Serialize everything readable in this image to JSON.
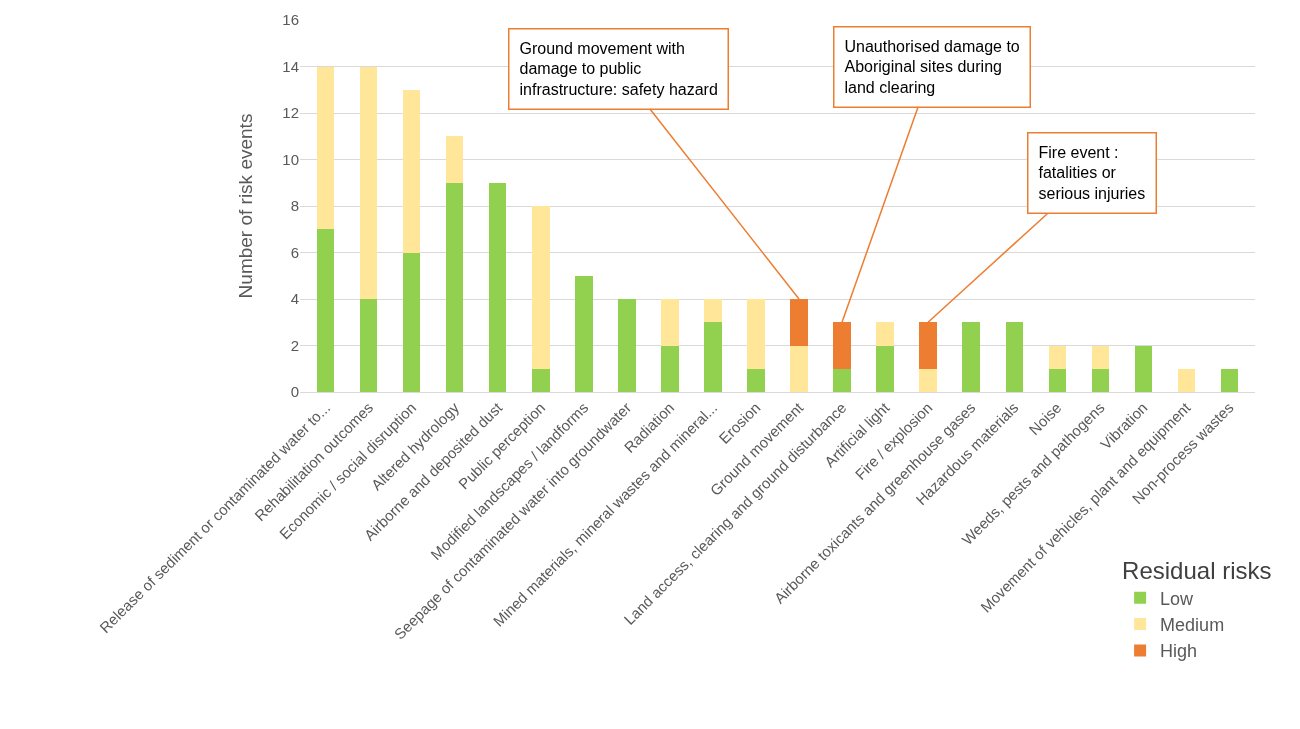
{
  "chart_data": {
    "type": "bar",
    "stacked": true,
    "ylabel": "Number of risk events",
    "legend_title": "Residual risks",
    "legend": "bottom right",
    "grid": "y",
    "categories": [
      "Release of sediment or contaminated water to...",
      "Rehabilitation outcomes",
      "Economic / social disruption",
      "Altered hydrology",
      "Airborne and deposited dust",
      "Public perception",
      "Modified landscapes / landforms",
      "Seepage of contaminated water into groundwater",
      "Radiation",
      "Mined materials, mineral wastes and mineral...",
      "Erosion",
      "Ground movement",
      "Land access, clearing and ground disturbance",
      "Artificial light",
      "Fire / explosion",
      "Airborne toxicants and greenhouse gases",
      "Hazardous materials",
      "Noise",
      "Weeds, pests and pathogens",
      "Vibration",
      "Movement of vehicles, plant and equipment",
      "Non-process wastes"
    ],
    "series": [
      {
        "name": "Low",
        "color": "#92d050",
        "values": [
          7,
          4,
          6,
          9,
          9,
          1,
          5,
          4,
          2,
          3,
          1,
          0,
          1,
          2,
          0,
          3,
          3,
          1,
          1,
          2,
          0,
          1
        ]
      },
      {
        "name": "Medium",
        "color": "#ffe699",
        "values": [
          7,
          10,
          7,
          2,
          0,
          7,
          0,
          0,
          2,
          1,
          3,
          2,
          0,
          1,
          1,
          0,
          0,
          1,
          1,
          0,
          1,
          0
        ]
      },
      {
        "name": "High",
        "color": "#ed7d31",
        "values": [
          0,
          0,
          0,
          0,
          0,
          0,
          0,
          0,
          0,
          0,
          0,
          2,
          2,
          0,
          2,
          0,
          0,
          0,
          0,
          0,
          0,
          0
        ]
      }
    ],
    "ylim": [
      0,
      16
    ],
    "yticks": [
      0,
      2,
      4,
      6,
      8,
      10,
      12,
      14,
      16
    ],
    "annotations": [
      {
        "text": "Ground movement with\ndamage to public\ninfrastructure: safety hazard",
        "x": "Ground movement",
        "y": 4
      },
      {
        "text": "Unauthorised damage to\nAboriginal sites during\nland clearing",
        "x": "Land access, clearing and ground disturbance",
        "y": 3
      },
      {
        "text": "Fire event :\nfatalities or\nserious injuries",
        "x": "Fire / explosion",
        "y": 3
      }
    ]
  }
}
